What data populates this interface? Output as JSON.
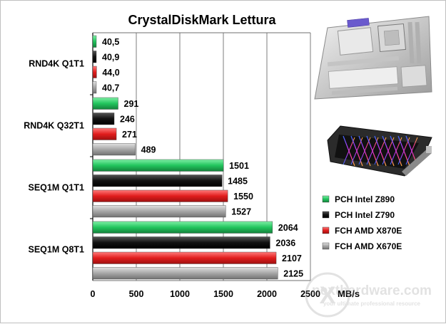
{
  "chart_data": {
    "type": "bar",
    "orientation": "horizontal",
    "title": "CrystalDiskMark  Lettura",
    "xlabel": "MB/s",
    "xlim": [
      0,
      2500
    ],
    "xticks": [
      "0",
      "500",
      "1000",
      "1500",
      "2000",
      "2500"
    ],
    "grid": true,
    "legend_position": "right",
    "categories": [
      "RND4K Q1T1",
      "RND4K Q32T1",
      "SEQ1M Q1T1",
      "SEQ1M Q8T1"
    ],
    "series": [
      {
        "name": "PCH Intel Z890",
        "color": "#22c55e",
        "values": [
          40.5,
          291,
          1501,
          2064
        ],
        "labels": [
          "40,5",
          "291",
          "1501",
          "2064"
        ]
      },
      {
        "name": "PCH Intel Z790",
        "color": "#111111",
        "values": [
          40.9,
          246,
          1485,
          2036
        ],
        "labels": [
          "40,9",
          "246",
          "1485",
          "2036"
        ]
      },
      {
        "name": "FCH AMD X870E",
        "color": "#e11d1d",
        "values": [
          44.0,
          271,
          1550,
          2107
        ],
        "labels": [
          "44,0",
          "271",
          "1550",
          "2107"
        ]
      },
      {
        "name": "FCH AMD X670E",
        "color": "#9a9a9a",
        "values": [
          40.7,
          489,
          1527,
          2125
        ],
        "labels": [
          "40,7",
          "489",
          "1527",
          "2125"
        ]
      }
    ]
  },
  "watermark": {
    "brand": "nexthardware.com",
    "tagline": "your ultimate professional resource"
  }
}
